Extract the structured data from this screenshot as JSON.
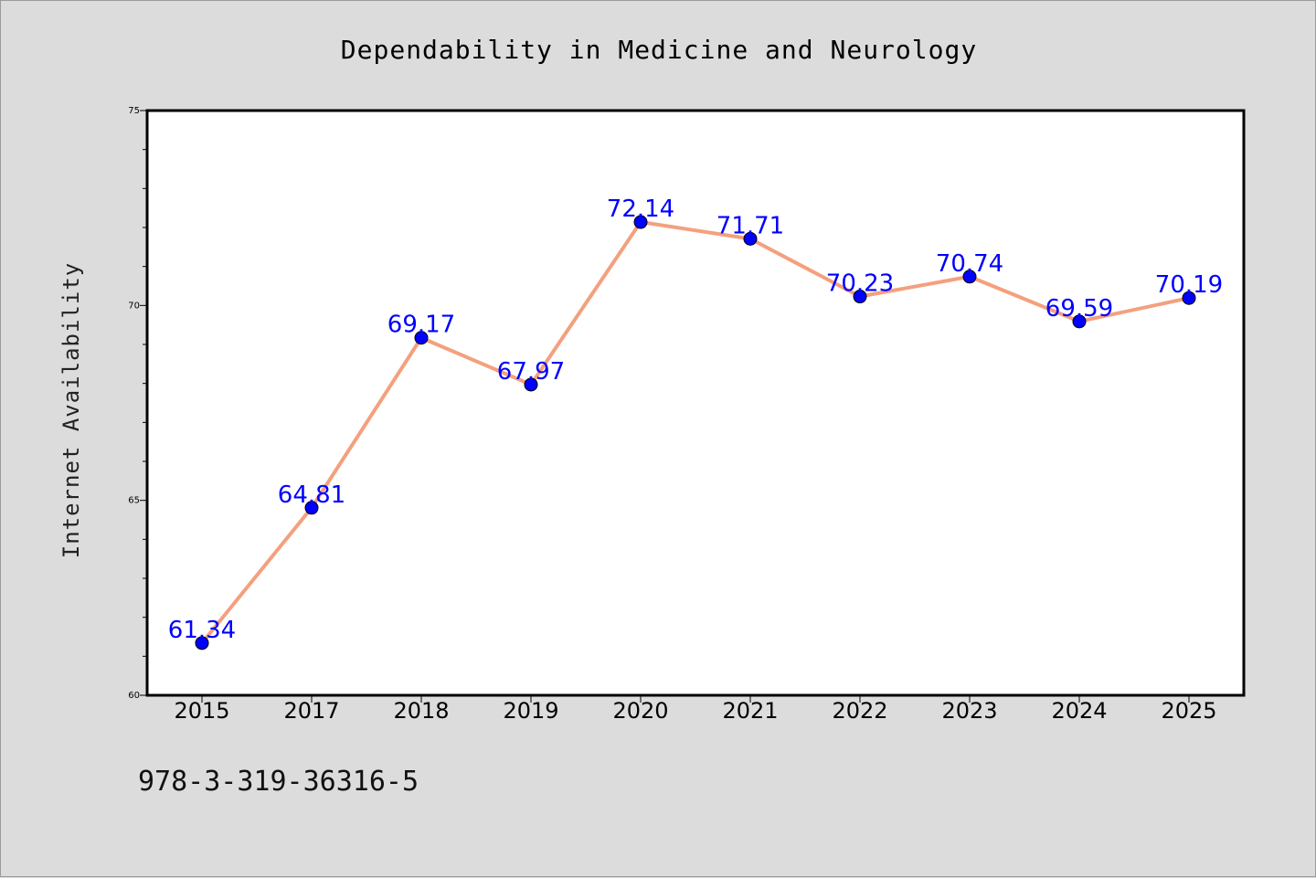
{
  "chart_data": {
    "type": "line",
    "title": "Dependability in Medicine and Neurology",
    "ylabel": "Internet Availability",
    "xlabel": "",
    "categories": [
      "2015",
      "2017",
      "2018",
      "2019",
      "2020",
      "2021",
      "2022",
      "2023",
      "2024",
      "2025"
    ],
    "series": [
      {
        "values": [
          61.34,
          64.81,
          69.17,
          67.97,
          72.14,
          71.71,
          70.23,
          70.74,
          69.59,
          70.19
        ],
        "data_labels": [
          "61.34",
          "64.81",
          "69.17",
          "67.97",
          "72.14",
          "71.71",
          "70.23",
          "70.74",
          "69.59",
          "70.19"
        ]
      }
    ],
    "ylim": [
      60,
      75
    ],
    "yticks": [
      "60",
      "65",
      "70",
      "75"
    ],
    "grid": false,
    "legend": "none",
    "colors": {
      "line": "#f4a07e",
      "marker": "#0000ff",
      "label": "#0000ff",
      "plot_background": "#ffffff",
      "figure_background": "#dcdcdc"
    }
  },
  "footnote": "978-3-319-36316-5"
}
